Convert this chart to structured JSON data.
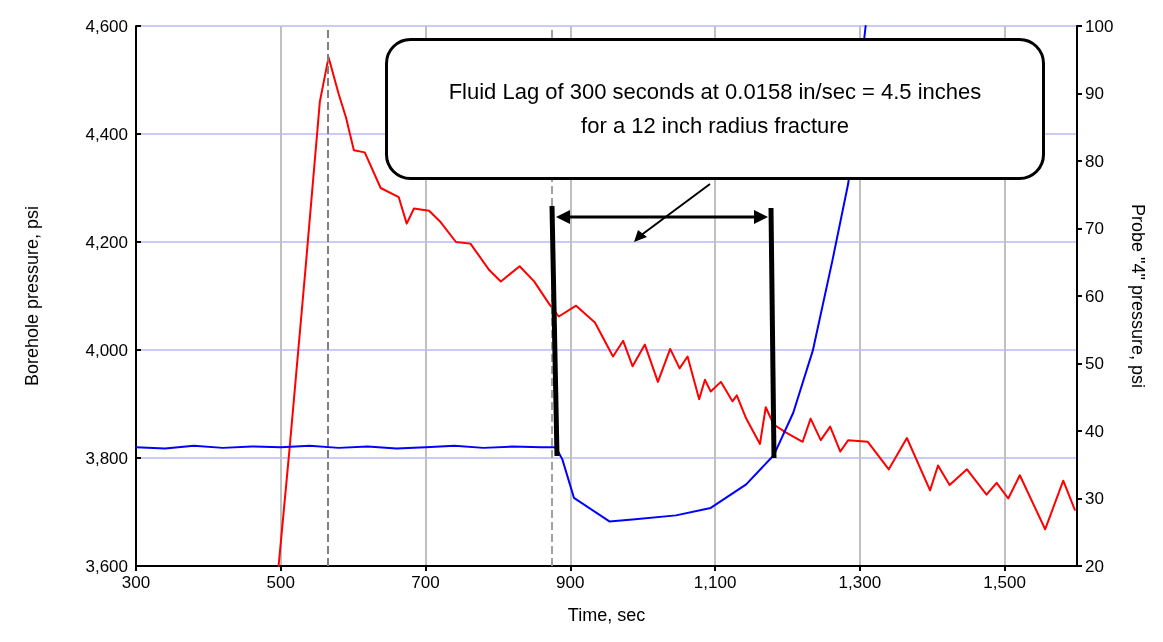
{
  "chart_data": {
    "type": "line",
    "xlabel": "Time, sec",
    "ylabel": "Borehole pressure, psi",
    "y2label": "Probe \"4\" pressure, psi",
    "annotations": [
      "Fluid Lag of 300 seconds at 0.0158 in/sec = 4.5 inches for a 12 inch radius fracture"
    ],
    "xlim": [
      300,
      1600
    ],
    "xticks": [
      {
        "value": 300,
        "label": "300"
      },
      {
        "value": 500,
        "label": "500"
      },
      {
        "value": 700,
        "label": "700"
      },
      {
        "value": 900,
        "label": "900"
      },
      {
        "value": 1100,
        "label": "1,100"
      },
      {
        "value": 1300,
        "label": "1,300"
      },
      {
        "value": 1500,
        "label": "1,500"
      }
    ],
    "ylim": [
      3600,
      4600
    ],
    "yticks": [
      {
        "value": 3600,
        "label": "3,600"
      },
      {
        "value": 3800,
        "label": "3,800"
      },
      {
        "value": 4000,
        "label": "4,000"
      },
      {
        "value": 4200,
        "label": "4,200"
      },
      {
        "value": 4400,
        "label": "4,400"
      },
      {
        "value": 4600,
        "label": "4,600"
      }
    ],
    "y2lim": [
      20,
      100
    ],
    "y2ticks": [
      20,
      30,
      40,
      50,
      60,
      70,
      80,
      90,
      100
    ],
    "grid": true,
    "marker": "none",
    "line_style": "solid",
    "ref_lines": [
      {
        "axis": "x",
        "value": 565,
        "color": "#808080",
        "line_style": "dashed"
      },
      {
        "axis": "x",
        "value": 874,
        "color": "#a0a0a0",
        "line_style": "dashed"
      }
    ],
    "series": [
      {
        "color": "#ff0000",
        "x": [
          497,
          512,
          534,
          554,
          566,
          580,
          590,
          601,
          616,
          638,
          663,
          674,
          684,
          705,
          720,
          742,
          762,
          788,
          804,
          830,
          850,
          871,
          884,
          908,
          934,
          959,
          973,
          986,
          1003,
          1021,
          1038,
          1051,
          1062,
          1078,
          1086,
          1094,
          1108,
          1124,
          1130,
          1143,
          1162,
          1170,
          1181,
          1197,
          1221,
          1232,
          1246,
          1259,
          1273,
          1284,
          1311,
          1340,
          1365,
          1397,
          1408,
          1424,
          1448,
          1475,
          1489,
          1505,
          1521,
          1556,
          1581,
          1597
        ],
        "values": [
          3600,
          3815,
          4148,
          4460,
          4542,
          4474,
          4431,
          4370,
          4366,
          4300,
          4283,
          4234,
          4262,
          4258,
          4238,
          4200,
          4197,
          4148,
          4127,
          4155,
          4127,
          4085,
          4062,
          4082,
          4051,
          3988,
          4017,
          3970,
          4010,
          3941,
          4002,
          3966,
          3988,
          3909,
          3945,
          3923,
          3941,
          3905,
          3916,
          3873,
          3826,
          3894,
          3862,
          3848,
          3830,
          3873,
          3833,
          3858,
          3812,
          3833,
          3830,
          3779,
          3837,
          3740,
          3786,
          3750,
          3779,
          3732,
          3754,
          3725,
          3768,
          3668,
          3758,
          3704
        ]
      },
      {
        "color": "#0000ff",
        "axis": "y2",
        "x": [
          300,
          340,
          380,
          420,
          460,
          500,
          540,
          580,
          620,
          660,
          700,
          740,
          780,
          820,
          860,
          880,
          889,
          905,
          954,
          986,
          1046,
          1094,
          1143,
          1181,
          1208,
          1235,
          1262,
          1284,
          1308
        ],
        "values": [
          37.6,
          37.4,
          37.8,
          37.5,
          37.7,
          37.6,
          37.8,
          37.5,
          37.7,
          37.4,
          37.6,
          37.8,
          37.5,
          37.7,
          37.6,
          37.6,
          35.8,
          30.1,
          26.6,
          26.9,
          27.5,
          28.6,
          32.1,
          36.4,
          42.7,
          51.9,
          65.2,
          76.7,
          100
        ]
      }
    ]
  }
}
